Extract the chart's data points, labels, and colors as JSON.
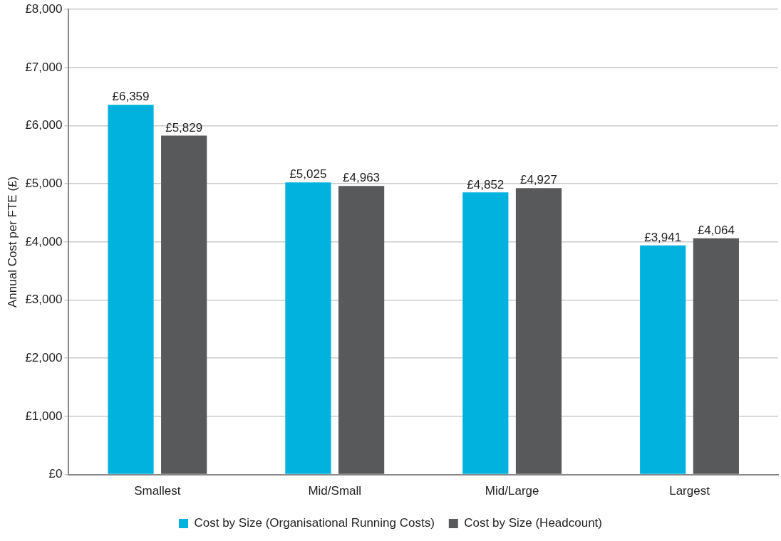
{
  "chart_data": {
    "type": "bar",
    "ylabel": "Annual Cost per FTE (£)",
    "categories": [
      "Smallest",
      "Mid/Small",
      "Mid/Large",
      "Largest"
    ],
    "series": [
      {
        "name": "Cost by Size (Organisational Running Costs)",
        "color": "#00b2dd",
        "values": [
          6359,
          5025,
          4852,
          3941
        ],
        "value_labels": [
          "£6,359",
          "£5,025",
          "£4,852",
          "£3,941"
        ]
      },
      {
        "name": "Cost by Size (Headcount)",
        "color": "#58595b",
        "values": [
          5829,
          4963,
          4927,
          4064
        ],
        "value_labels": [
          "£5,829",
          "£4,963",
          "£4,927",
          "£4,064"
        ]
      }
    ],
    "ylim": [
      0,
      8000
    ],
    "yticks": [
      {
        "value": 0,
        "label": "£0"
      },
      {
        "value": 1000,
        "label": "£1,000"
      },
      {
        "value": 2000,
        "label": "£2,000"
      },
      {
        "value": 3000,
        "label": "£3,000"
      },
      {
        "value": 4000,
        "label": "£4,000"
      },
      {
        "value": 5000,
        "label": "£5,000"
      },
      {
        "value": 6000,
        "label": "£6,000"
      },
      {
        "value": 7000,
        "label": "£7,000"
      },
      {
        "value": 8000,
        "label": "£8,000"
      }
    ],
    "grid": "y",
    "legend": "bottom"
  }
}
